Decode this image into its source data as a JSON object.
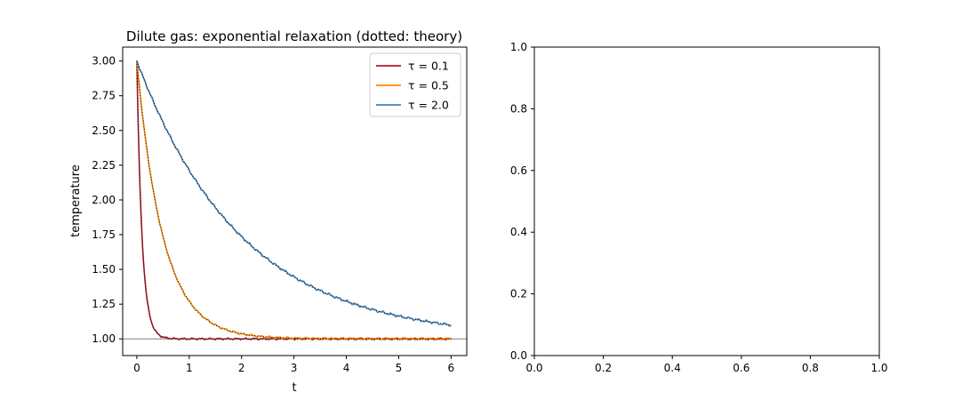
{
  "chart_data": [
    {
      "type": "line",
      "title": "Dilute gas: exponential relaxation (dotted: theory)",
      "xlabel": "t",
      "ylabel": "temperature",
      "xlim": [
        -0.27,
        6.3
      ],
      "ylim": [
        0.88,
        3.1
      ],
      "xticks": [
        0,
        1,
        2,
        3,
        4,
        5,
        6
      ],
      "yticks": [
        1.0,
        1.25,
        1.5,
        1.75,
        2.0,
        2.25,
        2.5,
        2.75,
        3.0
      ],
      "xtick_labels": [
        "0",
        "1",
        "2",
        "3",
        "4",
        "5",
        "6"
      ],
      "ytick_labels": [
        "1.00",
        "1.25",
        "1.50",
        "1.75",
        "2.00",
        "2.25",
        "2.50",
        "2.75",
        "3.00"
      ],
      "reference_line": {
        "y": 1.0,
        "color": "#808080"
      },
      "initial_temperature": 3.0,
      "equilibrium_temperature": 1.0,
      "t_range": [
        0,
        6
      ],
      "series": [
        {
          "name": "τ = 0.1",
          "tau": 0.1,
          "color": "#b2182b",
          "style": "solid",
          "theory_style": "dotted"
        },
        {
          "name": "τ = 0.5",
          "tau": 0.5,
          "color": "#ff8c00",
          "style": "solid",
          "theory_style": "dotted"
        },
        {
          "name": "τ = 2.0",
          "tau": 2.0,
          "color": "#4682b4",
          "style": "solid",
          "theory_style": "dotted"
        }
      ],
      "legend_position": "top-right"
    },
    {
      "type": "line",
      "title": "",
      "xlabel": "",
      "ylabel": "",
      "xlim": [
        0,
        1
      ],
      "ylim": [
        0,
        1
      ],
      "xticks": [
        0,
        0.2,
        0.4,
        0.6,
        0.8,
        1.0
      ],
      "yticks": [
        0,
        0.2,
        0.4,
        0.6,
        0.8,
        1.0
      ],
      "xtick_labels": [
        "0.0",
        "0.2",
        "0.4",
        "0.6",
        "0.8",
        "1.0"
      ],
      "ytick_labels": [
        "0.0",
        "0.2",
        "0.4",
        "0.6",
        "0.8",
        "1.0"
      ],
      "series": []
    }
  ]
}
